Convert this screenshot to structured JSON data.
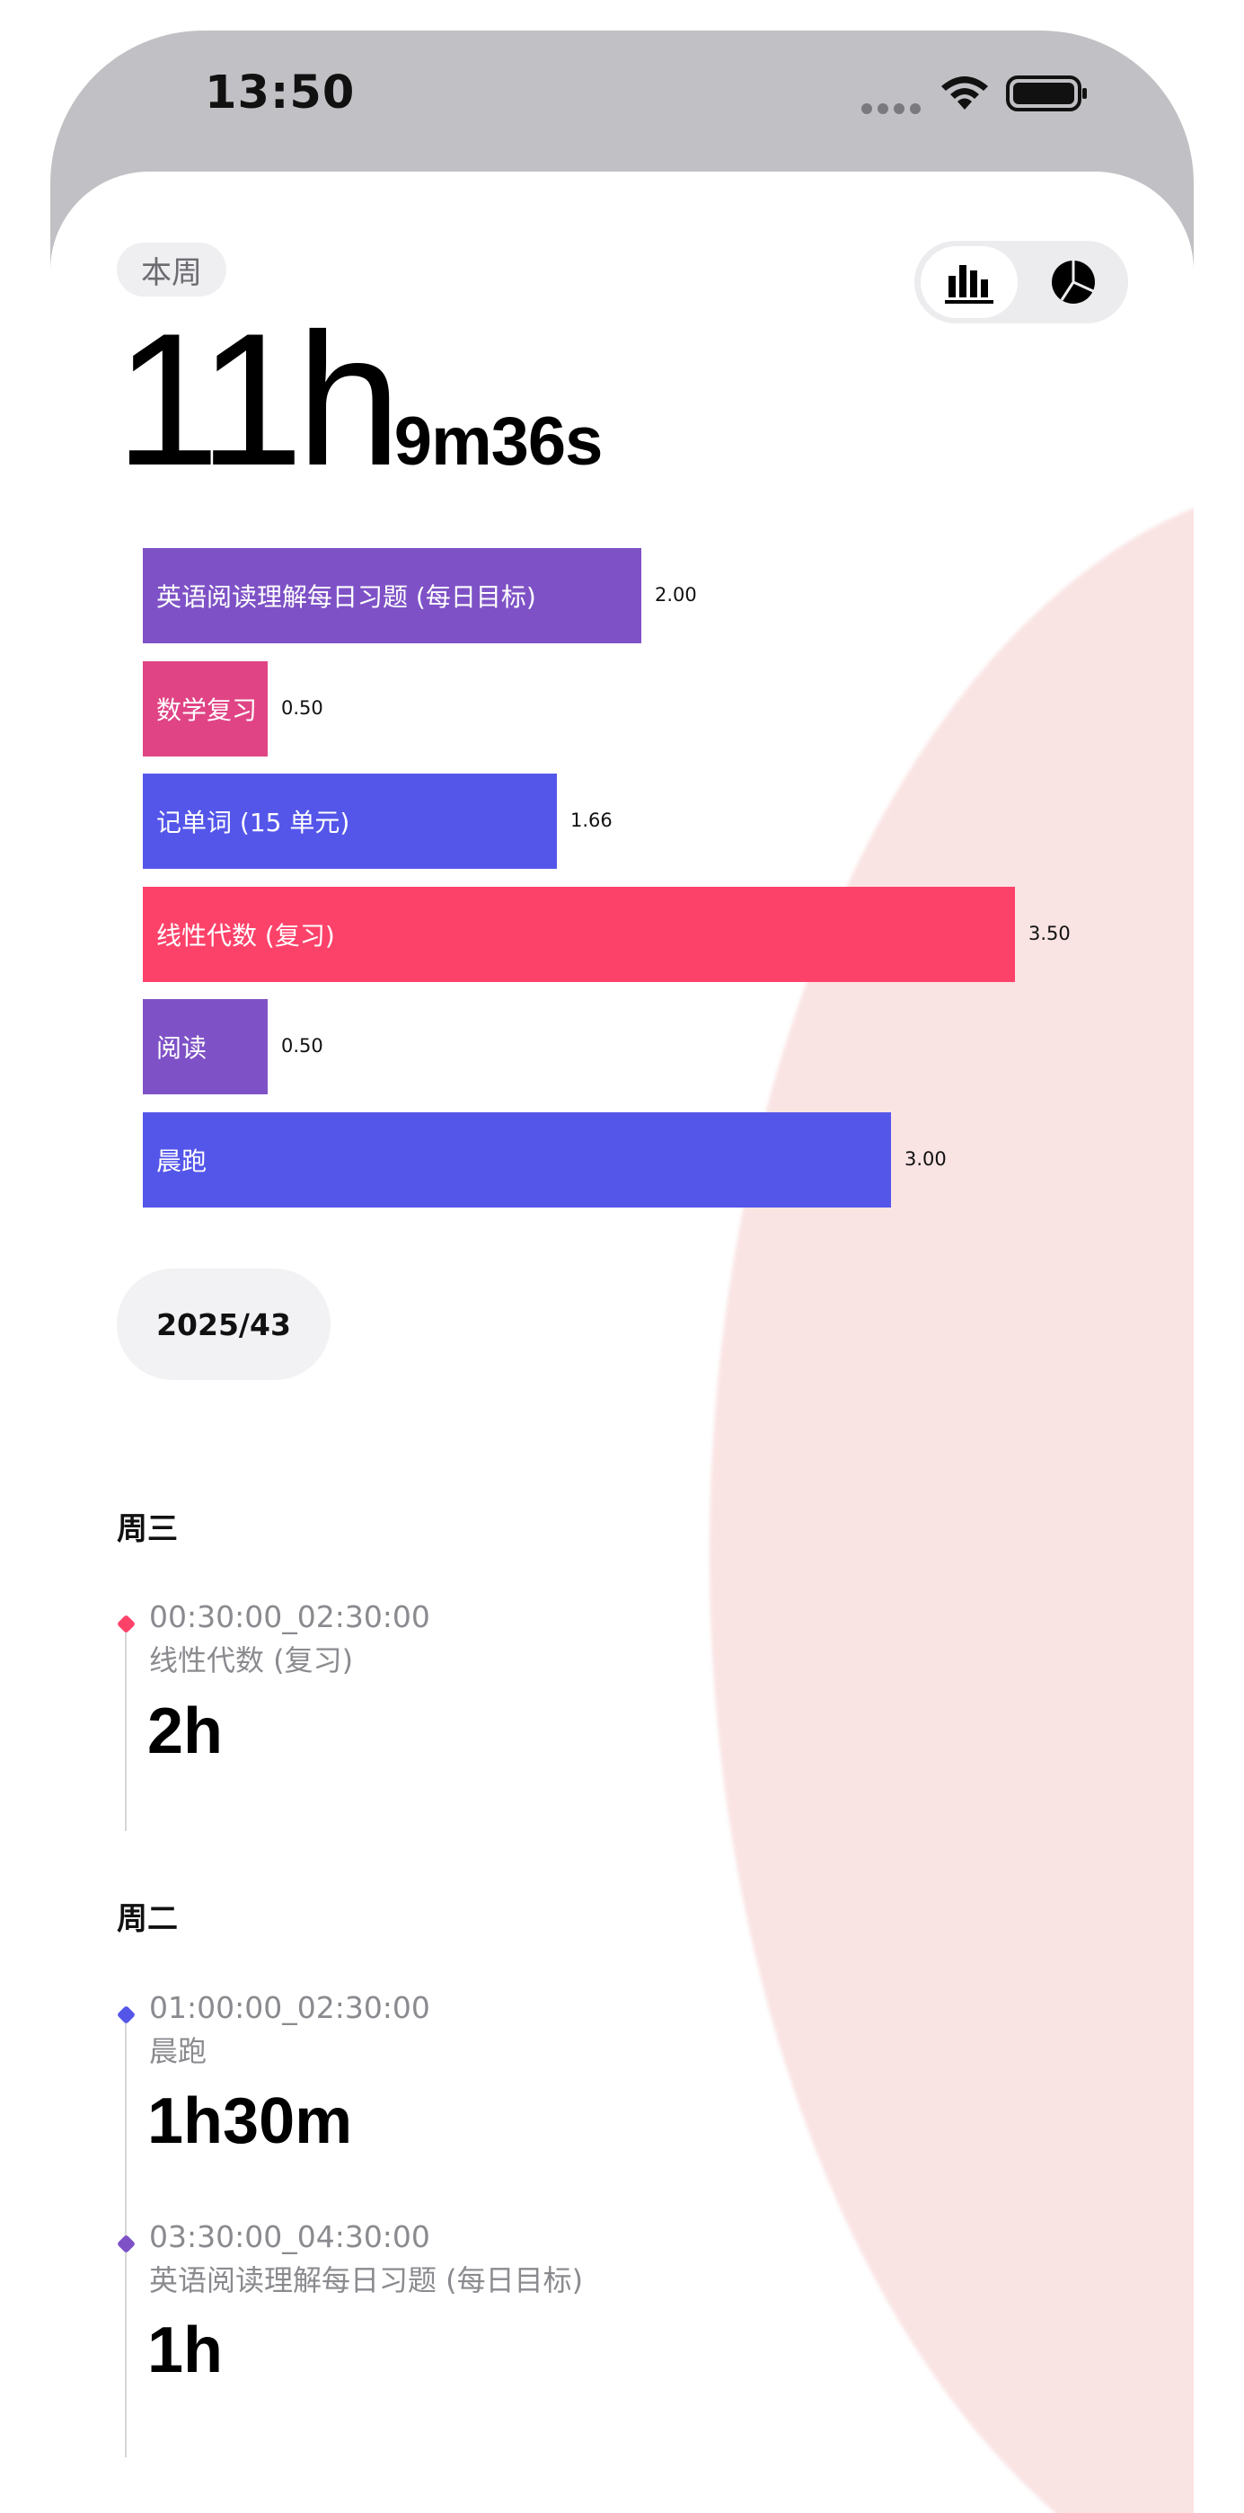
{
  "status_bar": {
    "time": "13:50"
  },
  "header": {
    "period_label": "本周",
    "total_hours": "11h",
    "total_rest": "9m36s",
    "view_toggle": {
      "options": [
        "bar-chart-icon",
        "pie-chart-icon"
      ],
      "selected": "bar-chart-icon"
    }
  },
  "chart_data": {
    "type": "bar",
    "orientation": "horizontal",
    "categories": [
      "英语阅读理解每日习题 (每日目标)",
      "数学复习",
      "记单词 (15 单元)",
      "线性代数 (复习)",
      "阅读",
      "晨跑"
    ],
    "values": [
      2.0,
      0.5,
      1.66,
      3.5,
      0.5,
      3.0
    ],
    "value_labels": [
      "2.00",
      "0.50",
      "1.66",
      "3.50",
      "0.50",
      "3.00"
    ],
    "colors": [
      "#7e52c6",
      "#e04485",
      "#5456ea",
      "#fd426a",
      "#7e52c6",
      "#5456ea"
    ]
  },
  "week": {
    "label": "2025/43"
  },
  "days": [
    {
      "title": "周三",
      "entries": [
        {
          "time": "00:30:00_02:30:00",
          "task": "线性代数 (复习)",
          "duration": "2h",
          "color": "#fd426a"
        }
      ]
    },
    {
      "title": "周二",
      "entries": [
        {
          "time": "01:00:00_02:30:00",
          "task": "晨跑",
          "duration": "1h30m",
          "color": "#5456ea"
        },
        {
          "time": "03:30:00_04:30:00",
          "task": "英语阅读理解每日习题 (每日目标)",
          "duration": "1h",
          "color": "#7e52c6"
        }
      ]
    }
  ],
  "colors": {
    "background_accent": "#fae3e3",
    "chip_background": "#efeff2"
  }
}
